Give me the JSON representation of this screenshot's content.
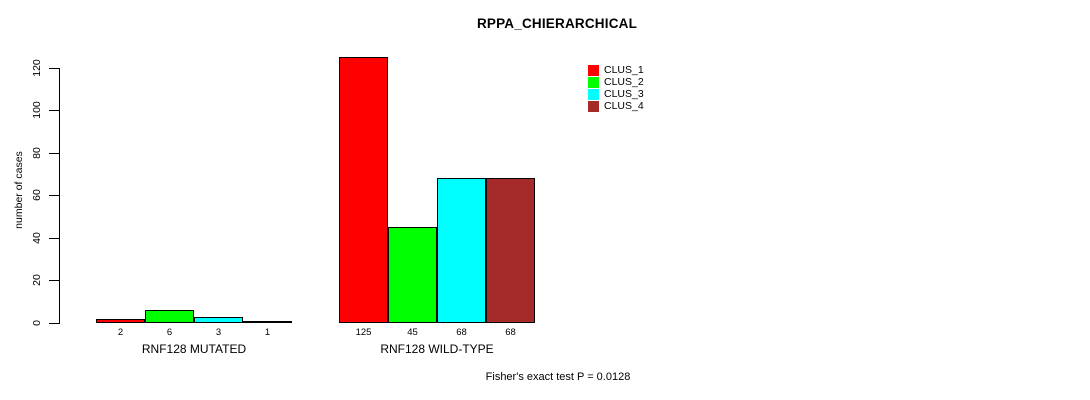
{
  "chart_data": {
    "type": "bar",
    "title": "RPPA_CHIERARCHICAL",
    "ylabel": "number of cases",
    "xlabel": "",
    "ylim": [
      0,
      120
    ],
    "yticks": [
      0,
      20,
      40,
      60,
      80,
      100,
      120
    ],
    "grid": false,
    "legend_position": "top-right",
    "series_names": [
      "CLUS_1",
      "CLUS_2",
      "CLUS_3",
      "CLUS_4"
    ],
    "colors": [
      "#ff0000",
      "#00ff00",
      "#00ffff",
      "#a52a2a"
    ],
    "bar_border_color": "#000000",
    "groups": [
      {
        "label": "RNF128 MUTATED",
        "values": [
          2,
          6,
          3,
          1
        ]
      },
      {
        "label": "RNF128 WILD-TYPE",
        "values": [
          125,
          45,
          68,
          68
        ]
      }
    ],
    "annotation": "Fisher's exact test P = 0.0128"
  }
}
